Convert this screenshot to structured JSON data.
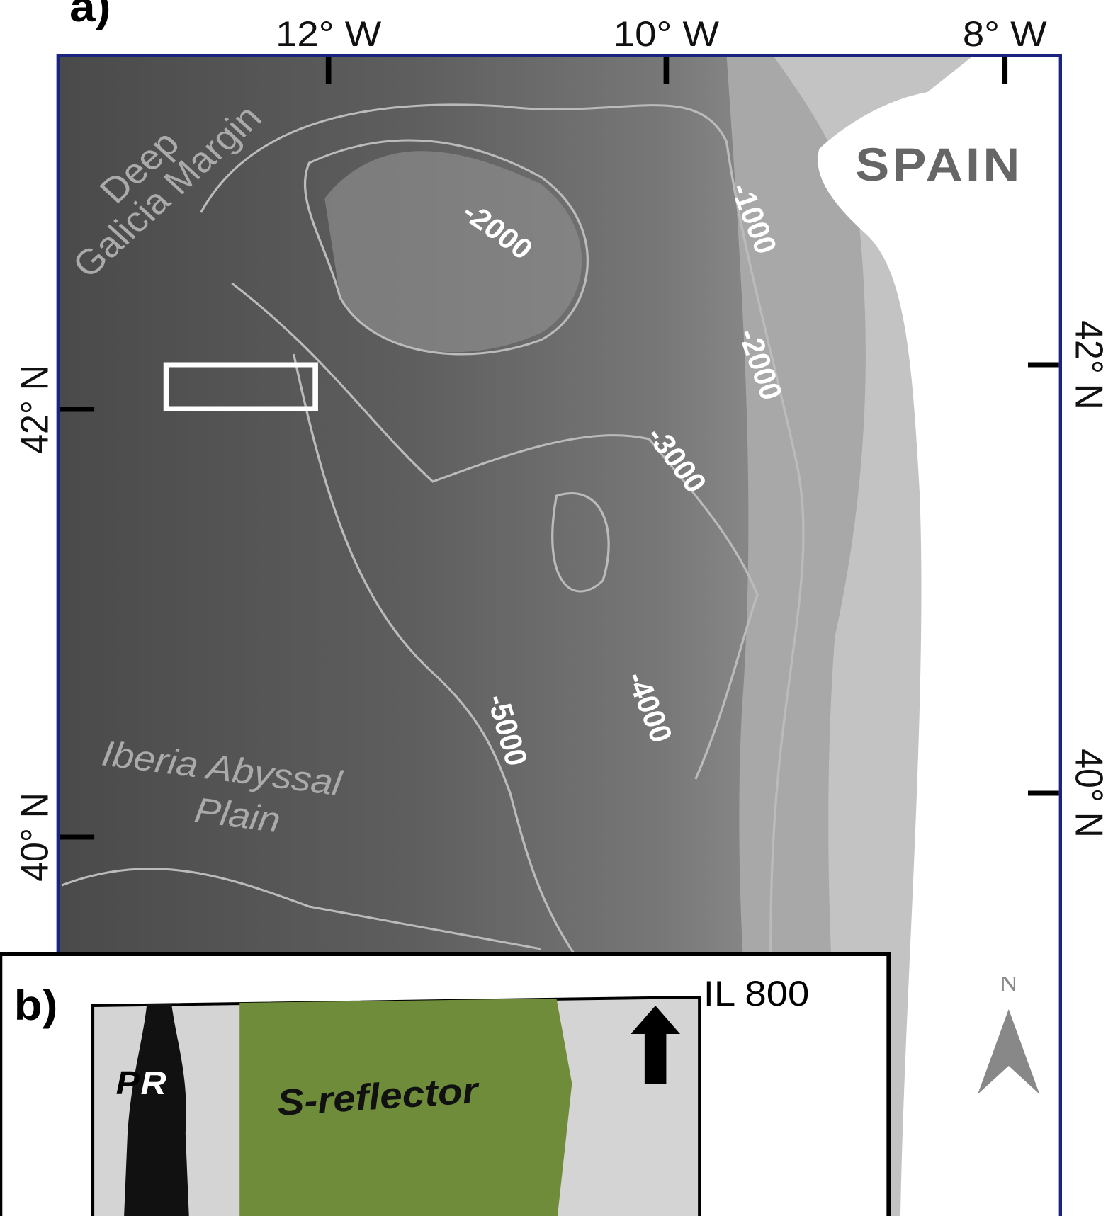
{
  "panel_a": {
    "label": "a)",
    "lon_ticks": [
      "12° W",
      "10° W",
      "8° W"
    ],
    "lat_ticks_left": [
      "42° N",
      "40° N"
    ],
    "lat_ticks_right": [
      "42° N",
      "40° N"
    ],
    "region_labels": {
      "deep_line1": "Deep",
      "deep_line2": "Galicia Margin",
      "country": "SPAIN",
      "abyssal_line1": "Iberia Abyssal",
      "abyssal_line2": "Plain"
    },
    "contour_labels": [
      "-1000",
      "-2000",
      "-2000",
      "-3000",
      "-4000",
      "-5000"
    ]
  },
  "panel_b": {
    "label": "b)",
    "inline": "IL 800",
    "pr_p": "P",
    "pr_r": "R",
    "feature": "S-reflector",
    "north": "N"
  }
}
